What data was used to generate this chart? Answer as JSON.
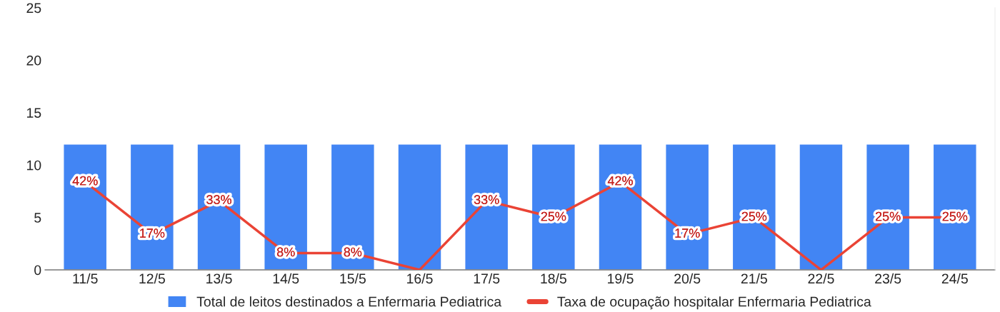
{
  "chart_data": {
    "type": "bar",
    "categories": [
      "11/5",
      "12/5",
      "13/5",
      "14/5",
      "15/5",
      "16/5",
      "17/5",
      "18/5",
      "19/5",
      "20/5",
      "21/5",
      "22/5",
      "23/5",
      "24/5"
    ],
    "series": [
      {
        "name": "Total de leitos destinados a Enfermaria Pediatrica",
        "color": "#4285f4",
        "values": [
          12,
          12,
          12,
          12,
          12,
          12,
          12,
          12,
          12,
          12,
          12,
          12,
          12,
          12
        ]
      },
      {
        "name": "Taxa de ocupação hospitalar Enfermaria Pediatrica",
        "type": "line",
        "axis": "y2",
        "color": "#ea4335",
        "values": [
          42,
          17,
          33,
          8,
          8,
          0,
          33,
          25,
          42,
          17,
          25,
          0,
          25,
          25
        ],
        "value_labels": [
          "42%",
          "17%",
          "33%",
          "8%",
          "8%",
          null,
          "33%",
          "25%",
          "42%",
          "17%",
          "25%",
          null,
          "25%",
          "25%"
        ]
      }
    ],
    "ylim": [
      0,
      25
    ],
    "yticks": [
      0,
      5,
      10,
      15,
      20,
      25
    ],
    "y2lim": [
      0,
      125
    ],
    "marker": "none",
    "grid": false,
    "legend": "bottom"
  }
}
